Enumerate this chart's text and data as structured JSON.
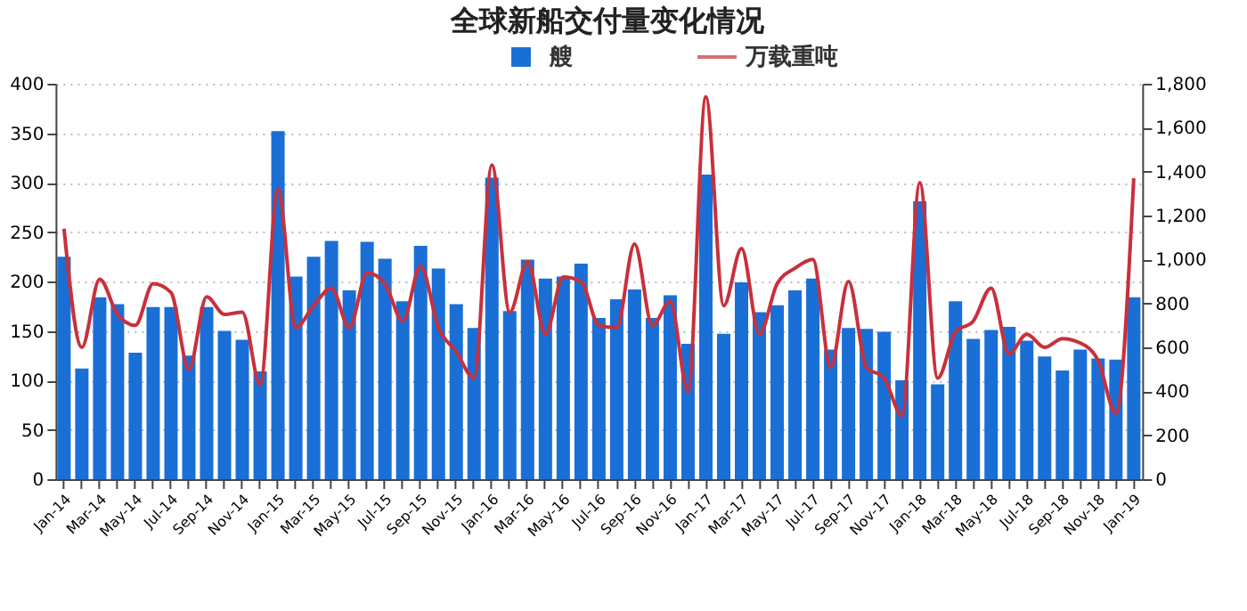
{
  "chart_data": {
    "type": "bar",
    "title": "全球新船交付量变化情况",
    "categories": [
      "Jan-14",
      null,
      "Mar-14",
      null,
      "May-14",
      null,
      "Jul-14",
      null,
      "Sep-14",
      null,
      "Nov-14",
      null,
      "Jan-15",
      null,
      "Mar-15",
      null,
      "May-15",
      null,
      "Jul-15",
      null,
      "Sep-15",
      null,
      "Nov-15",
      null,
      "Jan-16",
      null,
      "Mar-16",
      null,
      "May-16",
      null,
      "Jul-16",
      null,
      "Sep-16",
      null,
      "Nov-16",
      null,
      "Jan-17",
      null,
      "Mar-17",
      null,
      "May-17",
      null,
      "Jul-17",
      null,
      "Sep-17",
      null,
      "Nov-17",
      null,
      "Jan-18",
      null,
      "Mar-18",
      null,
      "May-18",
      null,
      "Jul-18",
      null,
      "Sep-18",
      null,
      "Nov-18",
      null,
      "Jan-19"
    ],
    "series": [
      {
        "name": "艘",
        "color": "#1a6fd6",
        "values": [
          225,
          112,
          184,
          177,
          128,
          174,
          174,
          125,
          174,
          150,
          141,
          109,
          352,
          205,
          225,
          241,
          191,
          240,
          223,
          180,
          236,
          213,
          177,
          153,
          305,
          170,
          222,
          203,
          205,
          218,
          163,
          182,
          192,
          163,
          186,
          137,
          308,
          147,
          199,
          169,
          176,
          191,
          203,
          131,
          153,
          152,
          149,
          100,
          281,
          96,
          180,
          142,
          151,
          154,
          140,
          124,
          110,
          131,
          122,
          121,
          184
        ]
      },
      {
        "name": "万载重吨",
        "type": "line",
        "axis": "y2",
        "color": "#c8303c",
        "values": [
          1140,
          600,
          910,
          750,
          700,
          890,
          850,
          500,
          830,
          750,
          760,
          430,
          1320,
          690,
          790,
          870,
          690,
          940,
          890,
          720,
          970,
          690,
          580,
          460,
          1430,
          760,
          990,
          660,
          920,
          900,
          700,
          690,
          1070,
          700,
          810,
          400,
          1740,
          790,
          1050,
          660,
          890,
          960,
          1000,
          510,
          900,
          510,
          460,
          290,
          1350,
          460,
          670,
          720,
          870,
          570,
          660,
          600,
          640,
          620,
          540,
          300,
          1370
        ]
      }
    ],
    "ylim": [
      0,
      400
    ],
    "yticks": [
      0,
      50,
      100,
      150,
      200,
      250,
      300,
      350,
      400
    ],
    "y2lim": [
      0,
      1800
    ],
    "y2ticks": [
      0,
      200,
      400,
      600,
      800,
      {
        "value": 1000,
        "label": "1,000"
      },
      {
        "value": 1200,
        "label": "1,200"
      },
      {
        "value": 1400,
        "label": "1,400"
      },
      {
        "value": 1600,
        "label": "1,600"
      },
      {
        "value": 1800,
        "label": "1,800"
      }
    ],
    "grid": "y",
    "legend": "top",
    "marker": "none",
    "line_style": "solid"
  }
}
